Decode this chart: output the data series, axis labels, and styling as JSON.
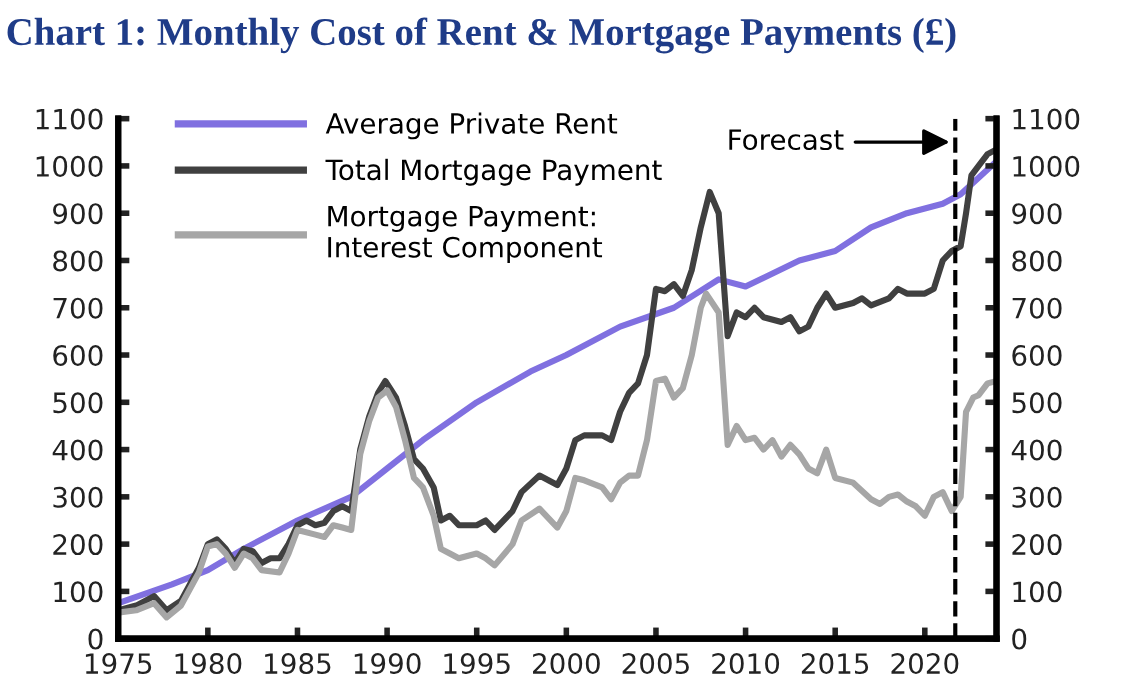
{
  "chart_data": {
    "type": "line",
    "title": "Chart 1: Monthly Cost of Rent & Mortgage Payments (£)",
    "xlim": [
      1975,
      2024
    ],
    "xticks": [
      1975,
      1980,
      1985,
      1990,
      1995,
      2000,
      2005,
      2010,
      2015,
      2020
    ],
    "ylim": [
      0,
      1100
    ],
    "yticks": [
      0,
      100,
      200,
      300,
      400,
      500,
      600,
      700,
      800,
      900,
      1000,
      1100
    ],
    "y2lim": [
      0,
      1100
    ],
    "y2ticks": [
      0,
      100,
      200,
      300,
      400,
      500,
      600,
      700,
      800,
      900,
      1000,
      1100
    ],
    "grid": false,
    "legend": "top left",
    "marker": "none",
    "line_style": "solid",
    "ref_lines": [
      {
        "axis": "x",
        "value": 2021.7,
        "label": "Forecast",
        "line_style": "dashed",
        "color": "#000000"
      }
    ],
    "series": [
      {
        "name": "Average Private Rent",
        "color": "#8070e0",
        "x": [
          1975,
          1978,
          1980,
          1982,
          1985,
          1988,
          1990,
          1992,
          1995,
          1998,
          2000,
          2003,
          2006,
          2008.5,
          2010,
          2013,
          2015,
          2017,
          2019,
          2021,
          2022,
          2024
        ],
        "values": [
          75,
          115,
          145,
          190,
          250,
          300,
          360,
          420,
          500,
          565,
          600,
          660,
          700,
          760,
          745,
          800,
          820,
          870,
          900,
          920,
          940,
          1010
        ]
      },
      {
        "name": "Total Mortgage Payment",
        "color": "#404040",
        "x": [
          1975,
          1976,
          1977,
          1977.7,
          1978.5,
          1979.5,
          1980,
          1980.5,
          1981,
          1981.5,
          1982,
          1982.5,
          1983,
          1983.5,
          1984,
          1984.5,
          1985,
          1985.5,
          1986,
          1986.5,
          1987,
          1987.5,
          1988,
          1988.5,
          1989,
          1989.5,
          1989.9,
          1990.5,
          1991,
          1991.5,
          1992,
          1992.6,
          1993,
          1993.5,
          1994,
          1995,
          1995.5,
          1996,
          1997,
          1997.5,
          1998.5,
          1999.5,
          2000,
          2000.5,
          2001,
          2002,
          2002.5,
          2003,
          2003.5,
          2004,
          2004.5,
          2005,
          2005.5,
          2006,
          2006.5,
          2007,
          2007.5,
          2008,
          2008.5,
          2009,
          2009.5,
          2010,
          2010.5,
          2011,
          2012,
          2012.5,
          2013,
          2013.5,
          2014,
          2014.5,
          2015,
          2016,
          2016.5,
          2017,
          2018,
          2018.5,
          2019,
          2020,
          2020.5,
          2021,
          2021.5,
          2022,
          2022.3,
          2022.6,
          2023,
          2023.5,
          2024
        ],
        "values": [
          60,
          70,
          90,
          60,
          80,
          150,
          200,
          210,
          190,
          160,
          190,
          185,
          160,
          170,
          170,
          200,
          240,
          250,
          240,
          245,
          270,
          280,
          270,
          400,
          470,
          520,
          545,
          510,
          450,
          380,
          360,
          320,
          250,
          260,
          240,
          240,
          250,
          230,
          270,
          310,
          345,
          325,
          360,
          420,
          430,
          430,
          420,
          480,
          520,
          540,
          600,
          740,
          735,
          750,
          725,
          780,
          870,
          945,
          900,
          640,
          690,
          680,
          700,
          680,
          670,
          680,
          650,
          660,
          700,
          730,
          700,
          710,
          720,
          705,
          720,
          740,
          730,
          730,
          740,
          800,
          820,
          830,
          900,
          980,
          1000,
          1025,
          1035
        ]
      },
      {
        "name": "Mortgage Payment:\nInterest Component",
        "color": "#a6a6a6",
        "x": [
          1975,
          1976,
          1977,
          1977.7,
          1978.5,
          1979.5,
          1980,
          1980.5,
          1981,
          1981.5,
          1982,
          1982.5,
          1983,
          1984,
          1984.5,
          1985,
          1986,
          1986.5,
          1987,
          1987.5,
          1988,
          1988.5,
          1989,
          1989.5,
          1990,
          1990.5,
          1991,
          1991.5,
          1992,
          1992.6,
          1993,
          1993.5,
          1994,
          1995,
          1995.5,
          1996,
          1997,
          1997.5,
          1998.5,
          1999.5,
          2000,
          2000.5,
          2001,
          2002,
          2002.5,
          2003,
          2003.5,
          2004,
          2004.5,
          2005,
          2005.5,
          2006,
          2006.5,
          2007,
          2007.5,
          2007.8,
          2008.5,
          2009,
          2009.5,
          2010,
          2010.5,
          2011,
          2011.5,
          2012,
          2012.5,
          2013,
          2013.5,
          2014,
          2014.5,
          2015,
          2016,
          2017,
          2017.5,
          2018,
          2018.5,
          2019,
          2019.5,
          2020,
          2020.5,
          2021,
          2021.5,
          2022,
          2022.3,
          2022.7,
          2023,
          2023.5,
          2024
        ],
        "values": [
          55,
          60,
          75,
          45,
          70,
          140,
          195,
          200,
          180,
          150,
          180,
          170,
          145,
          140,
          180,
          230,
          220,
          215,
          240,
          235,
          230,
          390,
          460,
          510,
          525,
          490,
          420,
          340,
          320,
          260,
          190,
          180,
          170,
          180,
          170,
          155,
          200,
          250,
          275,
          235,
          270,
          340,
          335,
          320,
          295,
          330,
          345,
          345,
          420,
          545,
          550,
          510,
          530,
          600,
          700,
          730,
          690,
          410,
          450,
          420,
          425,
          400,
          420,
          385,
          410,
          390,
          360,
          350,
          400,
          340,
          330,
          295,
          285,
          300,
          305,
          290,
          280,
          260,
          300,
          310,
          270,
          300,
          480,
          510,
          515,
          540,
          545
        ]
      }
    ]
  }
}
